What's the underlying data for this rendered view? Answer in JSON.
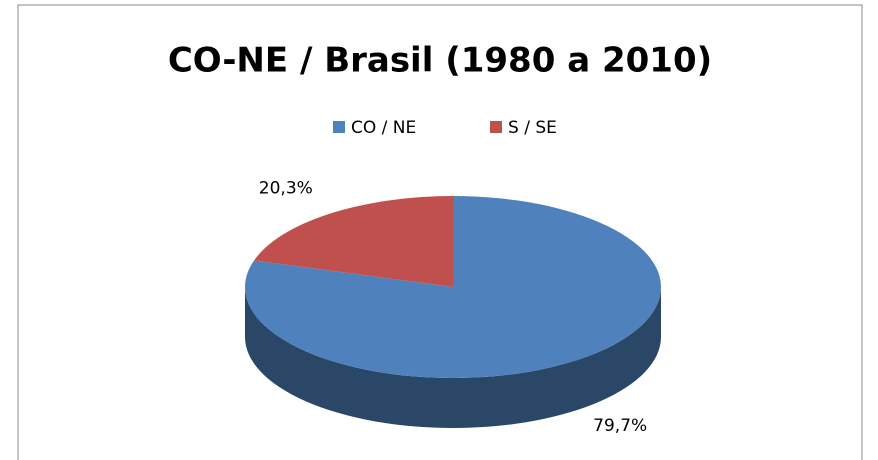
{
  "chart_data": {
    "type": "pie",
    "title": "CO-NE / Brasil (1980 a 2010)",
    "categories": [
      "CO / NE",
      "S / SE"
    ],
    "values": [
      79.7,
      20.3
    ],
    "value_labels": [
      "79,7%",
      "20,3%"
    ],
    "colors": [
      "#4f81bd",
      "#c0504d"
    ],
    "legend": "top"
  }
}
